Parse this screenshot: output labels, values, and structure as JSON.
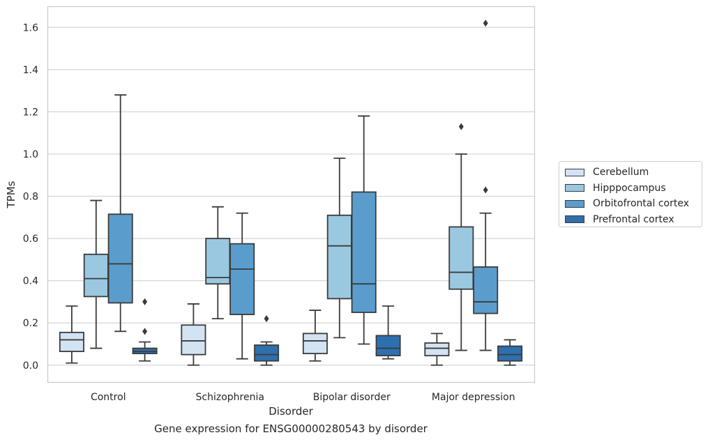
{
  "chart_data": {
    "type": "box",
    "title": "Gene expression for ENSG00000280543 by disorder",
    "xlabel": "Disorder",
    "ylabel": "TPMs",
    "ylim": [
      -0.08,
      1.7
    ],
    "yticks": [
      "0.0",
      "0.2",
      "0.4",
      "0.6",
      "0.8",
      "1.0",
      "1.2",
      "1.4",
      "1.6"
    ],
    "categories": [
      "Control",
      "Schizophrenia",
      "Bipolar disorder",
      "Major depression"
    ],
    "grid": true,
    "legend_position": "right",
    "series": [
      {
        "name": "Cerebellum",
        "color": "#d2e3f3",
        "boxes": [
          {
            "whisker_low": 0.01,
            "q1": 0.065,
            "median": 0.12,
            "q3": 0.155,
            "whisker_high": 0.28,
            "outliers": []
          },
          {
            "whisker_low": 0.0,
            "q1": 0.05,
            "median": 0.115,
            "q3": 0.19,
            "whisker_high": 0.29,
            "outliers": []
          },
          {
            "whisker_low": 0.02,
            "q1": 0.055,
            "median": 0.115,
            "q3": 0.15,
            "whisker_high": 0.26,
            "outliers": []
          },
          {
            "whisker_low": 0.0,
            "q1": 0.045,
            "median": 0.08,
            "q3": 0.105,
            "whisker_high": 0.15,
            "outliers": []
          }
        ]
      },
      {
        "name": "Hipppocampus",
        "color": "#9ac8e0",
        "boxes": [
          {
            "whisker_low": 0.08,
            "q1": 0.325,
            "median": 0.41,
            "q3": 0.525,
            "whisker_high": 0.78,
            "outliers": []
          },
          {
            "whisker_low": 0.22,
            "q1": 0.385,
            "median": 0.415,
            "q3": 0.6,
            "whisker_high": 0.75,
            "outliers": []
          },
          {
            "whisker_low": 0.13,
            "q1": 0.315,
            "median": 0.565,
            "q3": 0.71,
            "whisker_high": 0.98,
            "outliers": []
          },
          {
            "whisker_low": 0.07,
            "q1": 0.36,
            "median": 0.44,
            "q3": 0.655,
            "whisker_high": 1.0,
            "outliers": [
              1.13
            ]
          }
        ]
      },
      {
        "name": "Orbitofrontal cortex",
        "color": "#5a9dcd",
        "boxes": [
          {
            "whisker_low": 0.16,
            "q1": 0.295,
            "median": 0.48,
            "q3": 0.715,
            "whisker_high": 1.28,
            "outliers": []
          },
          {
            "whisker_low": 0.03,
            "q1": 0.24,
            "median": 0.455,
            "q3": 0.575,
            "whisker_high": 0.72,
            "outliers": []
          },
          {
            "whisker_low": 0.1,
            "q1": 0.25,
            "median": 0.385,
            "q3": 0.82,
            "whisker_high": 1.18,
            "outliers": []
          },
          {
            "whisker_low": 0.07,
            "q1": 0.245,
            "median": 0.3,
            "q3": 0.465,
            "whisker_high": 0.72,
            "outliers": [
              0.83,
              1.62
            ]
          }
        ]
      },
      {
        "name": "Prefrontal cortex",
        "color": "#2e6fae",
        "boxes": [
          {
            "whisker_low": 0.02,
            "q1": 0.055,
            "median": 0.065,
            "q3": 0.08,
            "whisker_high": 0.11,
            "outliers": [
              0.16,
              0.3
            ]
          },
          {
            "whisker_low": 0.0,
            "q1": 0.02,
            "median": 0.05,
            "q3": 0.095,
            "whisker_high": 0.11,
            "outliers": [
              0.22
            ]
          },
          {
            "whisker_low": 0.03,
            "q1": 0.045,
            "median": 0.08,
            "q3": 0.14,
            "whisker_high": 0.28,
            "outliers": []
          },
          {
            "whisker_low": 0.0,
            "q1": 0.02,
            "median": 0.05,
            "q3": 0.09,
            "whisker_high": 0.12,
            "outliers": []
          }
        ]
      }
    ]
  }
}
